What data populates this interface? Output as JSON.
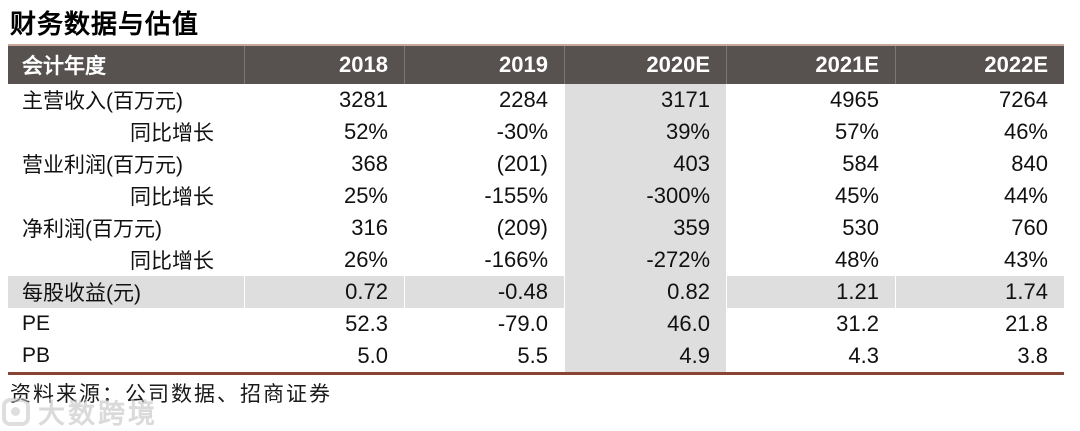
{
  "title": "财务数据与估值",
  "table": {
    "header": {
      "label": "会计年度",
      "years": [
        "2018",
        "2019",
        "2020E",
        "2021E",
        "2022E"
      ]
    },
    "highlight_column": "2020E",
    "rows": [
      {
        "label": "主营收入(百万元)",
        "values": [
          "3281",
          "2284",
          "3171",
          "4965",
          "7264"
        ]
      },
      {
        "label": "同比增长",
        "values": [
          "52%",
          "-30%",
          "39%",
          "57%",
          "46%"
        ]
      },
      {
        "label": "营业利润(百万元)",
        "values": [
          "368",
          "(201)",
          "403",
          "584",
          "840"
        ]
      },
      {
        "label": "同比增长",
        "values": [
          "25%",
          "-155%",
          "-300%",
          "45%",
          "44%"
        ]
      },
      {
        "label": "净利润(百万元)",
        "values": [
          "316",
          "(209)",
          "359",
          "530",
          "760"
        ]
      },
      {
        "label": "同比增长",
        "values": [
          "26%",
          "-166%",
          "-272%",
          "48%",
          "43%"
        ]
      },
      {
        "label": "每股收益(元)",
        "values": [
          "0.72",
          "-0.48",
          "0.82",
          "1.21",
          "1.74"
        ]
      },
      {
        "label": "PE",
        "values": [
          "52.3",
          "-79.0",
          "46.0",
          "31.2",
          "21.8"
        ]
      },
      {
        "label": "PB",
        "values": [
          "5.0",
          "5.5",
          "4.9",
          "4.3",
          "3.8"
        ]
      }
    ]
  },
  "footer": {
    "text": "资料来源：公司数据、招商证券"
  },
  "watermark": {
    "text": "大数跨境"
  },
  "colors": {
    "header_bg": "#575150",
    "header_text": "#ffffff",
    "highlight_bg": "#dedede",
    "accent_line": "#8b4434",
    "top_line": "#c7a79b"
  }
}
